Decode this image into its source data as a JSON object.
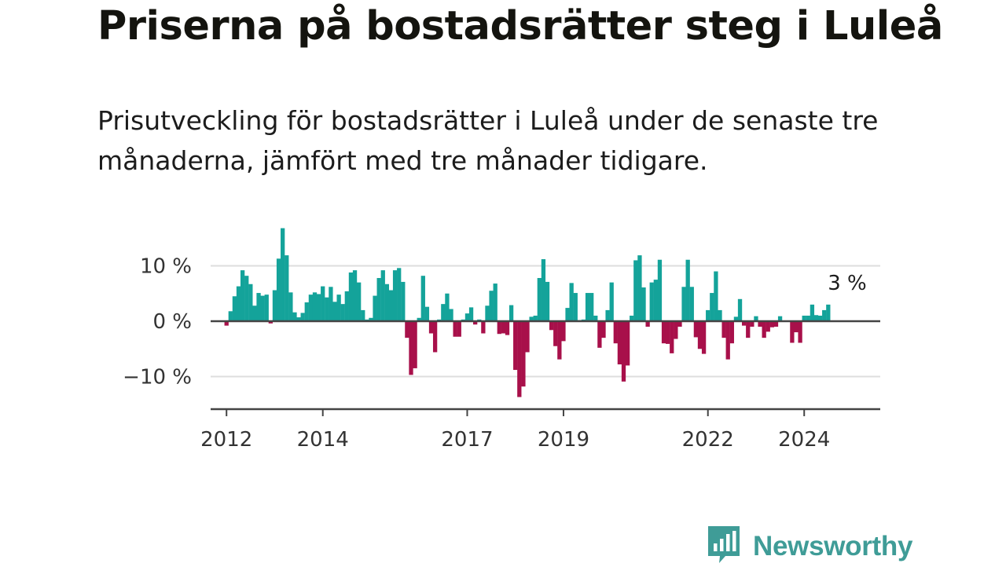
{
  "title": "Priserna på bostadsrätter steg i Luleå",
  "subtitle": "Prisutveckling för bostadsrätter i Luleå under de senaste tre månaderna, jämfört med tre månader tidigare.",
  "brand": {
    "name": "Newsworthy",
    "color": "#3f9c97",
    "icon": "newsworthy-logo-icon"
  },
  "colors": {
    "positive": "#14a39a",
    "negative": "#a8104a",
    "gridline": "#dedede",
    "axis": "#444444"
  },
  "chart_data": {
    "type": "bar",
    "title": "Priserna på bostadsrätter steg i Luleå",
    "xlabel": "",
    "ylabel": "",
    "ylim": [
      -16,
      18
    ],
    "xlim": [
      2011.67,
      2025.58
    ],
    "grid": true,
    "y_ticks": [
      {
        "value": 10,
        "label": "10 %"
      },
      {
        "value": 0,
        "label": "0 %"
      },
      {
        "value": -10,
        "label": "−10 %"
      }
    ],
    "x_ticks": [
      {
        "value": 2012,
        "label": "2012"
      },
      {
        "value": 2014,
        "label": "2014"
      },
      {
        "value": 2017,
        "label": "2017"
      },
      {
        "value": 2019,
        "label": "2019"
      },
      {
        "value": 2022,
        "label": "2022"
      },
      {
        "value": 2024,
        "label": "2024"
      }
    ],
    "start": 2012.0,
    "step": 0.08333,
    "values": [
      -0.8,
      1.8,
      4.5,
      6.3,
      9.2,
      8.2,
      6.7,
      2.8,
      5.1,
      4.6,
      4.8,
      -0.4,
      5.6,
      11.3,
      16.8,
      11.9,
      5.2,
      1.6,
      0.7,
      1.5,
      3.4,
      4.8,
      5.2,
      4.9,
      6.3,
      4.3,
      6.2,
      3.5,
      4.8,
      3.1,
      5.4,
      8.8,
      9.2,
      7.0,
      2.0,
      0.3,
      0.6,
      4.6,
      7.8,
      9.2,
      6.7,
      5.6,
      9.2,
      9.6,
      7.1,
      -3.0,
      -9.7,
      -8.5,
      0.6,
      8.2,
      2.6,
      -2.2,
      -5.6,
      0.3,
      3.1,
      5.0,
      2.2,
      -2.8,
      -2.8,
      0.3,
      1.4,
      2.5,
      -0.6,
      0.3,
      -2.2,
      2.8,
      5.5,
      6.8,
      -2.3,
      -2.2,
      -2.5,
      2.9,
      -8.8,
      -13.7,
      -11.8,
      -5.6,
      0.8,
      1.0,
      7.8,
      11.2,
      7.1,
      -1.6,
      -4.5,
      -6.9,
      -3.6,
      2.4,
      6.9,
      5.1,
      0.2,
      0.3,
      5.1,
      5.1,
      1.0,
      -4.8,
      -3.0,
      2.0,
      7.0,
      -4.0,
      -7.8,
      -10.9,
      -8.0,
      1.0,
      11.0,
      11.9,
      6.1,
      -1.0,
      7.0,
      7.5,
      11.1,
      -4.0,
      -4.1,
      -5.8,
      -3.2,
      -1.0,
      6.2,
      11.1,
      6.2,
      -2.9,
      -5.0,
      -5.9,
      2.0,
      5.1,
      9.0,
      2.0,
      -3.0,
      -6.9,
      -4.0,
      0.8,
      4.0,
      -0.8,
      -3.0,
      -1.0,
      0.9,
      -1.0,
      -3.0,
      -1.9,
      -1.1,
      -1.0,
      0.9,
      0.0,
      0.0,
      -3.9,
      -2.0,
      -3.9,
      1.0,
      1.0,
      3.0,
      1.1,
      1.0,
      2.0,
      3.0
    ],
    "last_label": "3 %"
  }
}
